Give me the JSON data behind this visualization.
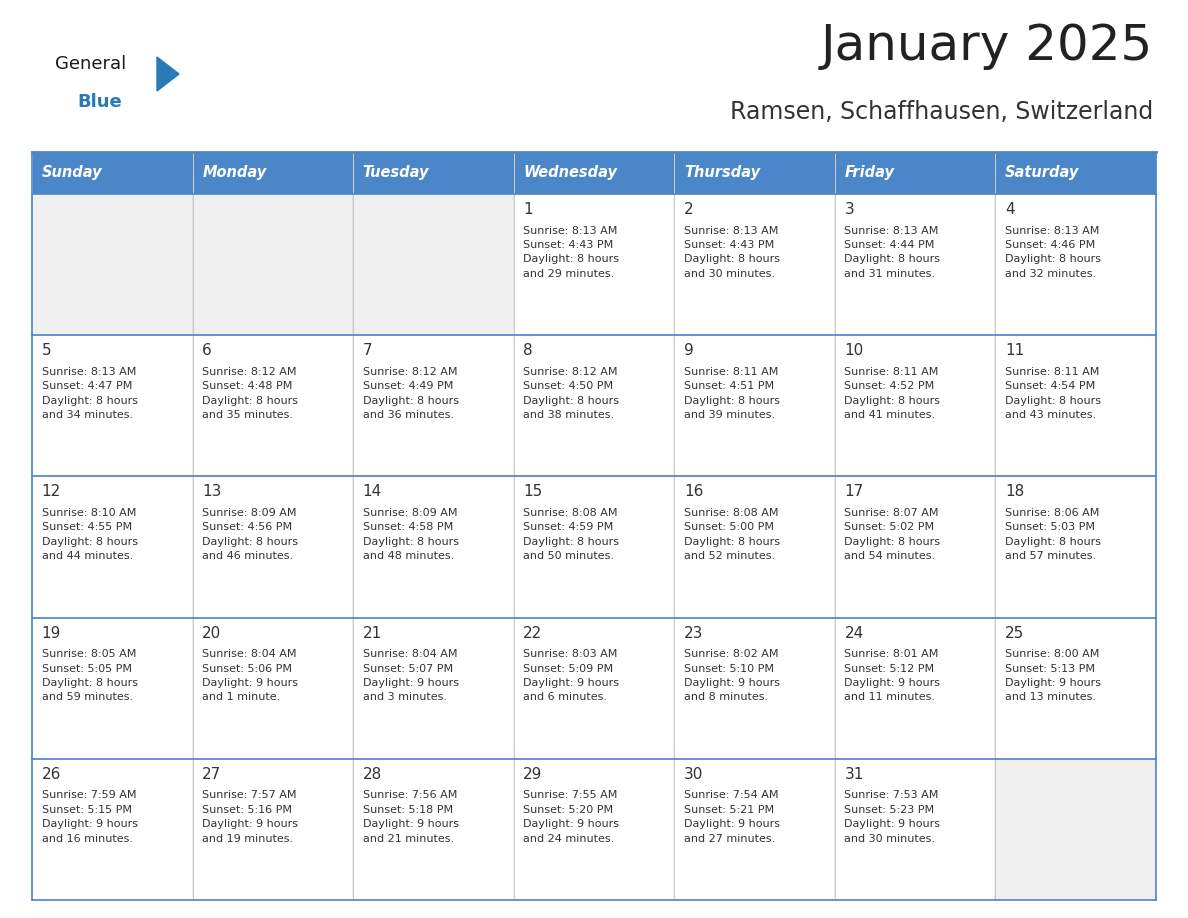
{
  "title": "January 2025",
  "subtitle": "Ramsen, Schaffhausen, Switzerland",
  "header_color": "#4a86c8",
  "header_text_color": "#ffffff",
  "cell_bg_light": "#efefef",
  "cell_bg_white": "#ffffff",
  "row_border_color": "#4a86c8",
  "cell_border_color": "#cccccc",
  "text_color": "#333333",
  "days_of_week": [
    "Sunday",
    "Monday",
    "Tuesday",
    "Wednesday",
    "Thursday",
    "Friday",
    "Saturday"
  ],
  "logo_general_color": "#1a1a1a",
  "logo_blue_color": "#2a7ab5",
  "weeks": [
    [
      {
        "day": "",
        "info": ""
      },
      {
        "day": "",
        "info": ""
      },
      {
        "day": "",
        "info": ""
      },
      {
        "day": "1",
        "info": "Sunrise: 8:13 AM\nSunset: 4:43 PM\nDaylight: 8 hours\nand 29 minutes."
      },
      {
        "day": "2",
        "info": "Sunrise: 8:13 AM\nSunset: 4:43 PM\nDaylight: 8 hours\nand 30 minutes."
      },
      {
        "day": "3",
        "info": "Sunrise: 8:13 AM\nSunset: 4:44 PM\nDaylight: 8 hours\nand 31 minutes."
      },
      {
        "day": "4",
        "info": "Sunrise: 8:13 AM\nSunset: 4:46 PM\nDaylight: 8 hours\nand 32 minutes."
      }
    ],
    [
      {
        "day": "5",
        "info": "Sunrise: 8:13 AM\nSunset: 4:47 PM\nDaylight: 8 hours\nand 34 minutes."
      },
      {
        "day": "6",
        "info": "Sunrise: 8:12 AM\nSunset: 4:48 PM\nDaylight: 8 hours\nand 35 minutes."
      },
      {
        "day": "7",
        "info": "Sunrise: 8:12 AM\nSunset: 4:49 PM\nDaylight: 8 hours\nand 36 minutes."
      },
      {
        "day": "8",
        "info": "Sunrise: 8:12 AM\nSunset: 4:50 PM\nDaylight: 8 hours\nand 38 minutes."
      },
      {
        "day": "9",
        "info": "Sunrise: 8:11 AM\nSunset: 4:51 PM\nDaylight: 8 hours\nand 39 minutes."
      },
      {
        "day": "10",
        "info": "Sunrise: 8:11 AM\nSunset: 4:52 PM\nDaylight: 8 hours\nand 41 minutes."
      },
      {
        "day": "11",
        "info": "Sunrise: 8:11 AM\nSunset: 4:54 PM\nDaylight: 8 hours\nand 43 minutes."
      }
    ],
    [
      {
        "day": "12",
        "info": "Sunrise: 8:10 AM\nSunset: 4:55 PM\nDaylight: 8 hours\nand 44 minutes."
      },
      {
        "day": "13",
        "info": "Sunrise: 8:09 AM\nSunset: 4:56 PM\nDaylight: 8 hours\nand 46 minutes."
      },
      {
        "day": "14",
        "info": "Sunrise: 8:09 AM\nSunset: 4:58 PM\nDaylight: 8 hours\nand 48 minutes."
      },
      {
        "day": "15",
        "info": "Sunrise: 8:08 AM\nSunset: 4:59 PM\nDaylight: 8 hours\nand 50 minutes."
      },
      {
        "day": "16",
        "info": "Sunrise: 8:08 AM\nSunset: 5:00 PM\nDaylight: 8 hours\nand 52 minutes."
      },
      {
        "day": "17",
        "info": "Sunrise: 8:07 AM\nSunset: 5:02 PM\nDaylight: 8 hours\nand 54 minutes."
      },
      {
        "day": "18",
        "info": "Sunrise: 8:06 AM\nSunset: 5:03 PM\nDaylight: 8 hours\nand 57 minutes."
      }
    ],
    [
      {
        "day": "19",
        "info": "Sunrise: 8:05 AM\nSunset: 5:05 PM\nDaylight: 8 hours\nand 59 minutes."
      },
      {
        "day": "20",
        "info": "Sunrise: 8:04 AM\nSunset: 5:06 PM\nDaylight: 9 hours\nand 1 minute."
      },
      {
        "day": "21",
        "info": "Sunrise: 8:04 AM\nSunset: 5:07 PM\nDaylight: 9 hours\nand 3 minutes."
      },
      {
        "day": "22",
        "info": "Sunrise: 8:03 AM\nSunset: 5:09 PM\nDaylight: 9 hours\nand 6 minutes."
      },
      {
        "day": "23",
        "info": "Sunrise: 8:02 AM\nSunset: 5:10 PM\nDaylight: 9 hours\nand 8 minutes."
      },
      {
        "day": "24",
        "info": "Sunrise: 8:01 AM\nSunset: 5:12 PM\nDaylight: 9 hours\nand 11 minutes."
      },
      {
        "day": "25",
        "info": "Sunrise: 8:00 AM\nSunset: 5:13 PM\nDaylight: 9 hours\nand 13 minutes."
      }
    ],
    [
      {
        "day": "26",
        "info": "Sunrise: 7:59 AM\nSunset: 5:15 PM\nDaylight: 9 hours\nand 16 minutes."
      },
      {
        "day": "27",
        "info": "Sunrise: 7:57 AM\nSunset: 5:16 PM\nDaylight: 9 hours\nand 19 minutes."
      },
      {
        "day": "28",
        "info": "Sunrise: 7:56 AM\nSunset: 5:18 PM\nDaylight: 9 hours\nand 21 minutes."
      },
      {
        "day": "29",
        "info": "Sunrise: 7:55 AM\nSunset: 5:20 PM\nDaylight: 9 hours\nand 24 minutes."
      },
      {
        "day": "30",
        "info": "Sunrise: 7:54 AM\nSunset: 5:21 PM\nDaylight: 9 hours\nand 27 minutes."
      },
      {
        "day": "31",
        "info": "Sunrise: 7:53 AM\nSunset: 5:23 PM\nDaylight: 9 hours\nand 30 minutes."
      },
      {
        "day": "",
        "info": ""
      }
    ]
  ]
}
